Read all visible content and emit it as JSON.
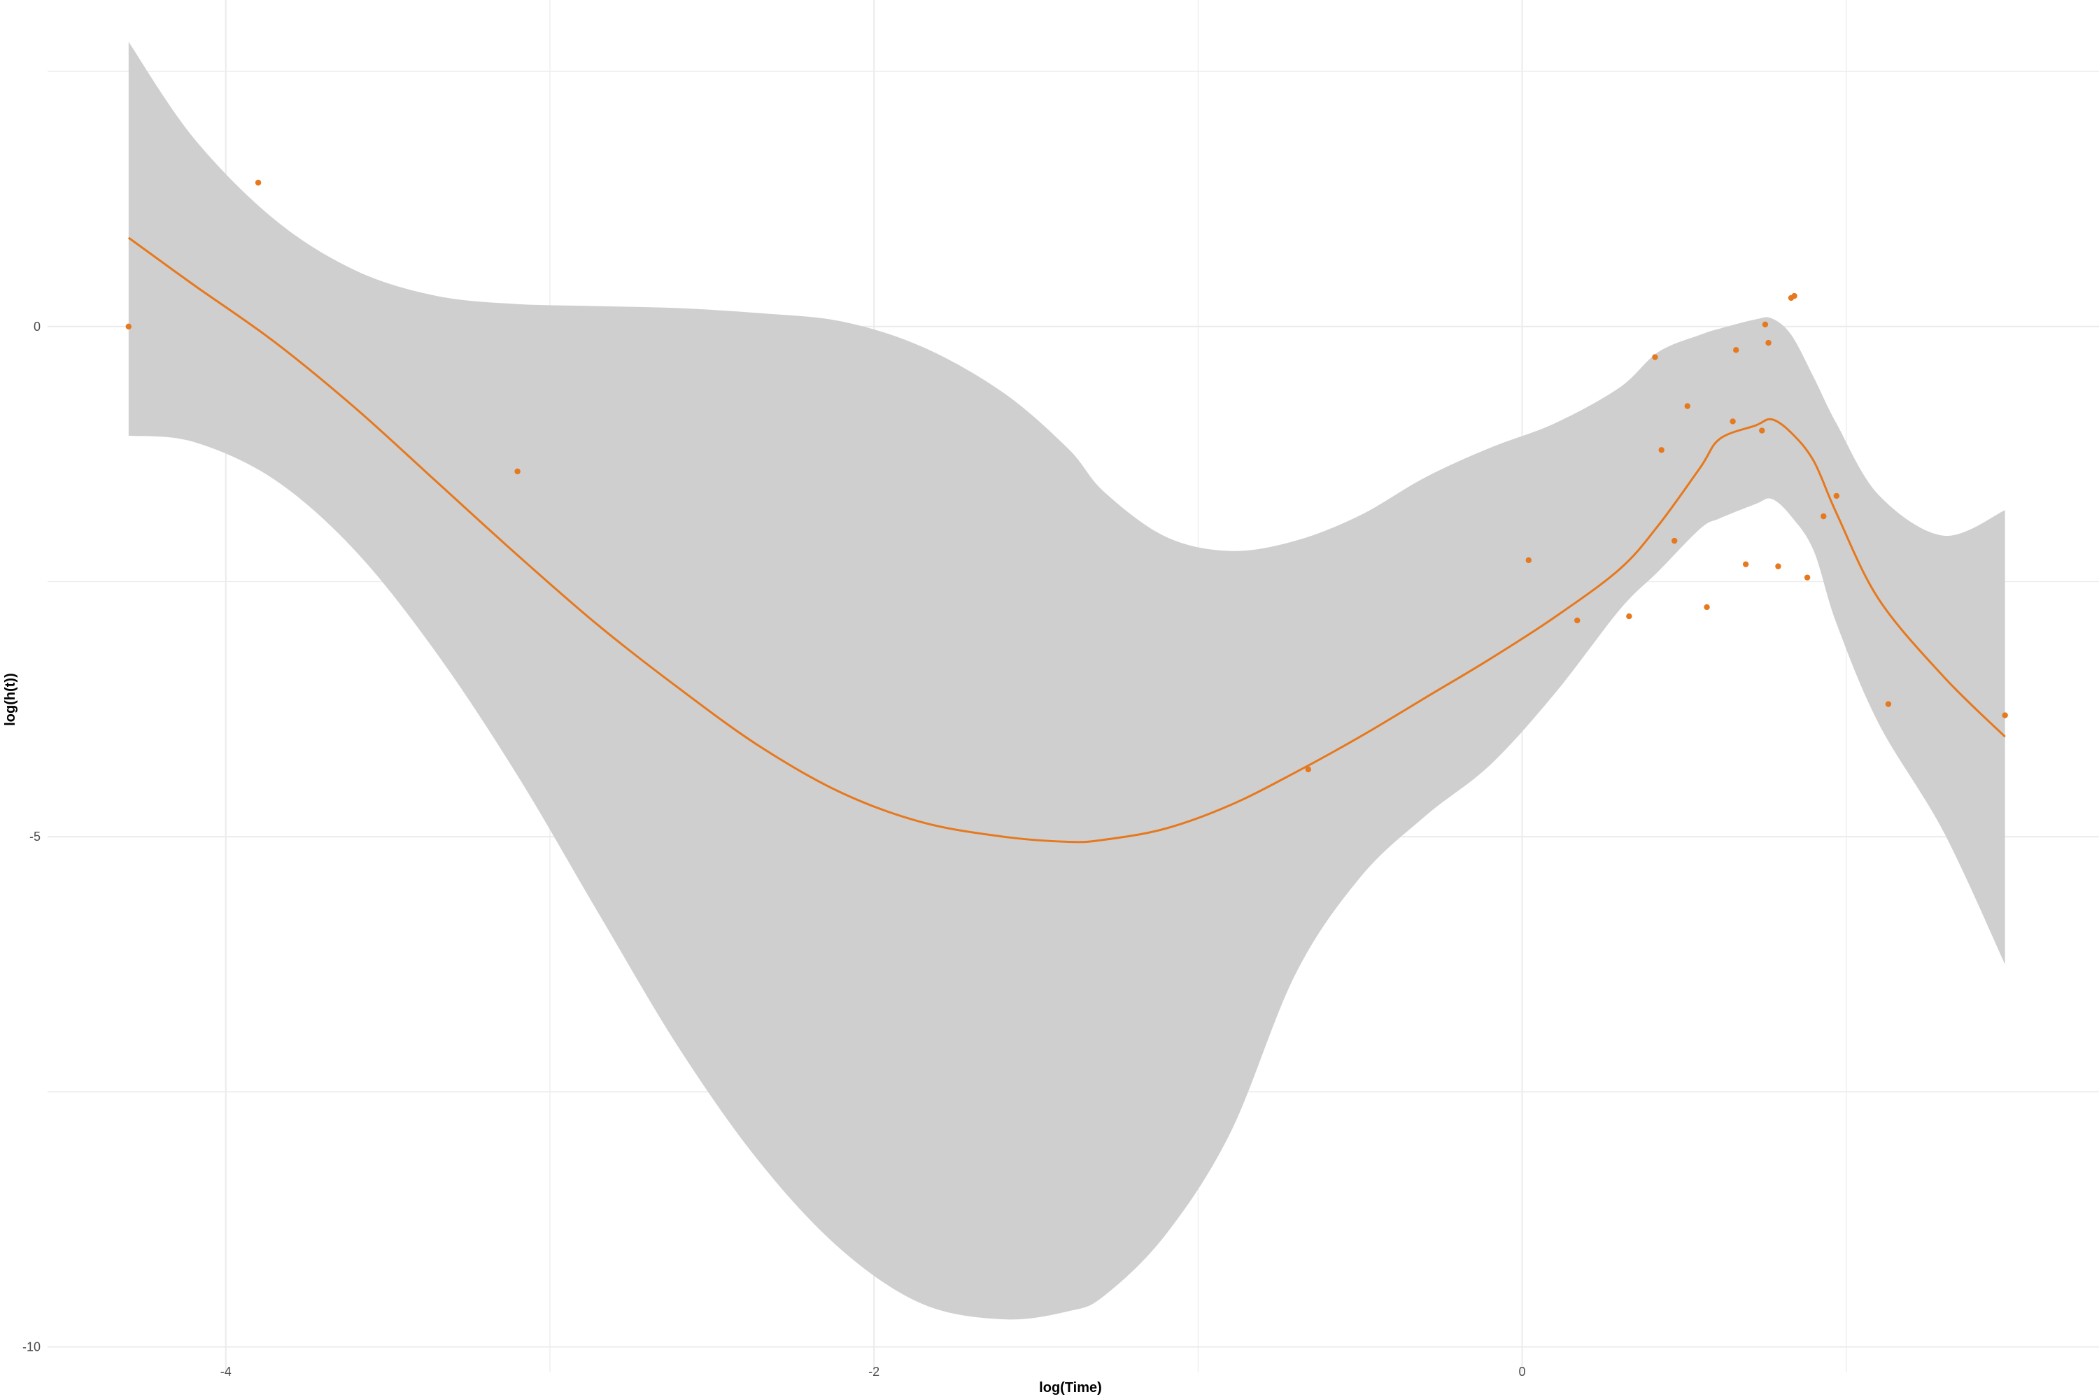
{
  "chart_data": {
    "type": "scatter",
    "title": "",
    "xlabel": "log(Time)",
    "ylabel": "log(h(t))",
    "xlim": [
      -4.55,
      1.78
    ],
    "ylim": [
      -10.25,
      3.2
    ],
    "x_ticks": [
      -4,
      -2,
      0
    ],
    "y_ticks": [
      0,
      -5,
      -10
    ],
    "grid": true,
    "colors": {
      "points": "#E6781E",
      "fit_line": "#E6781E",
      "band": "#CFCFCF",
      "grid": "#EBEBEB"
    },
    "points": [
      {
        "x": -4.3,
        "y": 0.0
      },
      {
        "x": -3.9,
        "y": 1.41
      },
      {
        "x": -3.1,
        "y": -1.42
      },
      {
        "x": -0.66,
        "y": -4.34
      },
      {
        "x": 0.02,
        "y": -2.29
      },
      {
        "x": 0.17,
        "y": -2.88
      },
      {
        "x": 0.33,
        "y": -2.84
      },
      {
        "x": 0.41,
        "y": -0.3
      },
      {
        "x": 0.43,
        "y": -1.21
      },
      {
        "x": 0.47,
        "y": -2.1
      },
      {
        "x": 0.51,
        "y": -0.78
      },
      {
        "x": 0.57,
        "y": -2.75
      },
      {
        "x": 0.65,
        "y": -0.93
      },
      {
        "x": 0.66,
        "y": -0.23
      },
      {
        "x": 0.69,
        "y": -2.33
      },
      {
        "x": 0.74,
        "y": -1.02
      },
      {
        "x": 0.75,
        "y": 0.02
      },
      {
        "x": 0.76,
        "y": -0.16
      },
      {
        "x": 0.79,
        "y": -2.35
      },
      {
        "x": 0.83,
        "y": 0.28
      },
      {
        "x": 0.84,
        "y": 0.3
      },
      {
        "x": 0.88,
        "y": -2.46
      },
      {
        "x": 0.93,
        "y": -1.86
      },
      {
        "x": 0.97,
        "y": -1.66
      },
      {
        "x": 1.13,
        "y": -3.7
      },
      {
        "x": 1.49,
        "y": -3.81
      }
    ],
    "fit": {
      "x": [
        -4.3,
        -4.1,
        -3.85,
        -3.6,
        -3.35,
        -3.1,
        -2.85,
        -2.6,
        -2.35,
        -2.1,
        -1.85,
        -1.6,
        -1.4,
        -1.29,
        -1.1,
        -0.9,
        -0.7,
        -0.5,
        -0.3,
        -0.1,
        0.1,
        0.3,
        0.42,
        0.55,
        0.61,
        0.72,
        0.77,
        0.83,
        0.9,
        0.97,
        1.1,
        1.3,
        1.49
      ],
      "y": [
        0.87,
        0.41,
        -0.15,
        -0.8,
        -1.52,
        -2.24,
        -2.93,
        -3.55,
        -4.12,
        -4.57,
        -4.86,
        -5.0,
        -5.05,
        -5.03,
        -4.92,
        -4.69,
        -4.37,
        -4.02,
        -3.64,
        -3.26,
        -2.85,
        -2.38,
        -1.95,
        -1.38,
        -1.1,
        -0.97,
        -0.91,
        -1.04,
        -1.32,
        -1.83,
        -2.67,
        -3.43,
        -4.02
      ],
      "lower": [
        -1.07,
        -1.13,
        -1.5,
        -2.2,
        -3.2,
        -4.4,
        -5.75,
        -7.08,
        -8.2,
        -9.05,
        -9.58,
        -9.73,
        -9.65,
        -9.5,
        -8.9,
        -7.9,
        -6.35,
        -5.4,
        -4.8,
        -4.3,
        -3.6,
        -2.78,
        -2.4,
        -1.98,
        -1.88,
        -1.74,
        -1.69,
        -1.86,
        -2.2,
        -2.91,
        -3.89,
        -4.95,
        -6.25
      ],
      "upper": [
        2.79,
        1.85,
        1.05,
        0.55,
        0.3,
        0.22,
        0.2,
        0.18,
        0.13,
        0.05,
        -0.2,
        -0.65,
        -1.2,
        -1.62,
        -2.06,
        -2.2,
        -2.1,
        -1.85,
        -1.48,
        -1.19,
        -0.95,
        -0.6,
        -0.25,
        -0.08,
        -0.02,
        0.07,
        0.08,
        -0.08,
        -0.5,
        -0.95,
        -1.65,
        -2.05,
        -1.8
      ]
    }
  }
}
